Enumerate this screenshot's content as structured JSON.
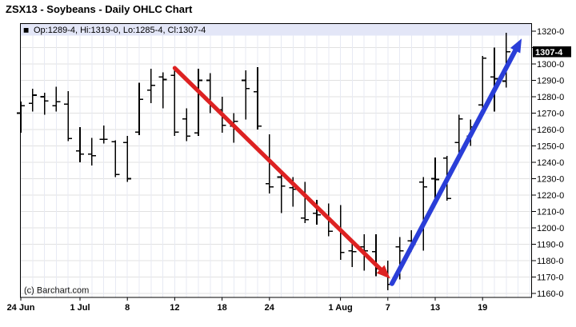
{
  "title": "ZSX13 - Soybeans - Daily OHLC Chart",
  "quote_strip": {
    "marker": "■",
    "text": "Op:1289-4, Hi:1319-0, Lo:1285-4, Cl:1307-4"
  },
  "copyright": "(c) Barchart.com",
  "colors": {
    "bar": "#000000",
    "downtrend_arrow": "#dd2222",
    "uptrend_arrow": "#2a3ed8",
    "quote_strip_bg": "#e3e6f7",
    "grid_h": "#e1e1e1",
    "grid_v": "#e7eaf3",
    "axis": "#000000",
    "last_price_bg": "#000000",
    "last_price_fg": "#ffffff"
  },
  "chart_data": {
    "type": "ohlc",
    "symbol": "ZSX13",
    "commodity": "Soybeans",
    "interval": "Daily",
    "title": "ZSX13 - Soybeans - Daily OHLC Chart",
    "price_format": "eighths: 1307-4 means 1307.5",
    "ylim": [
      1157,
      1325
    ],
    "y_gridline_step": 10,
    "grid": true,
    "legend": false,
    "y_axis_side": "right",
    "y_tick_labels": [
      {
        "label": "1320-0",
        "value": 1320
      },
      {
        "label": "1300-0",
        "value": 1300
      },
      {
        "label": "1290-0",
        "value": 1290
      },
      {
        "label": "1280-0",
        "value": 1280
      },
      {
        "label": "1270-0",
        "value": 1270
      },
      {
        "label": "1260-0",
        "value": 1260
      },
      {
        "label": "1250-0",
        "value": 1250
      },
      {
        "label": "1240-0",
        "value": 1240
      },
      {
        "label": "1230-0",
        "value": 1230
      },
      {
        "label": "1220-0",
        "value": 1220
      },
      {
        "label": "1210-0",
        "value": 1210
      },
      {
        "label": "1200-0",
        "value": 1200
      },
      {
        "label": "1190-0",
        "value": 1190
      },
      {
        "label": "1180-0",
        "value": 1180
      },
      {
        "label": "1170-0",
        "value": 1170
      },
      {
        "label": "1160-0",
        "value": 1160
      }
    ],
    "last_price": {
      "label": "1307-4",
      "value": 1307.5
    },
    "x_ticks": [
      {
        "label": "24 Jun",
        "bar": 0
      },
      {
        "label": "1 Jul",
        "bar": 5
      },
      {
        "label": "8",
        "bar": 9
      },
      {
        "label": "12",
        "bar": 13
      },
      {
        "label": "18",
        "bar": 17
      },
      {
        "label": "24",
        "bar": 21
      },
      {
        "label": "1 Aug",
        "bar": 27
      },
      {
        "label": "7",
        "bar": 31
      },
      {
        "label": "13",
        "bar": 35
      },
      {
        "label": "19",
        "bar": 39
      }
    ],
    "bars": [
      {
        "d": "24 Jun",
        "o": 1270.0,
        "h": 1277.0,
        "l": 1258.0,
        "c": 1274.5
      },
      {
        "d": "25 Jun",
        "o": 1276.0,
        "h": 1285.0,
        "l": 1271.0,
        "c": 1281.0
      },
      {
        "d": "26 Jun",
        "o": 1280.0,
        "h": 1282.5,
        "l": 1269.0,
        "c": 1277.5
      },
      {
        "d": "27 Jun",
        "o": 1274.5,
        "h": 1286.0,
        "l": 1271.0,
        "c": 1277.0
      },
      {
        "d": "28 Jun",
        "o": 1275.5,
        "h": 1283.5,
        "l": 1253.0,
        "c": 1254.5
      },
      {
        "d": "1 Jul",
        "o": 1247.0,
        "h": 1261.5,
        "l": 1240.0,
        "c": 1245.0
      },
      {
        "d": "2 Jul",
        "o": 1245.0,
        "h": 1255.0,
        "l": 1238.0,
        "c": 1244.0
      },
      {
        "d": "3 Jul",
        "o": 1254.0,
        "h": 1262.5,
        "l": 1251.5,
        "c": 1254.0
      },
      {
        "d": "5 Jul",
        "o": 1252.5,
        "h": 1253.5,
        "l": 1231.0,
        "c": 1232.5
      },
      {
        "d": "8 Jul",
        "o": 1252.0,
        "h": 1256.0,
        "l": 1228.0,
        "c": 1230.0
      },
      {
        "d": "9 Jul",
        "o": 1258.5,
        "h": 1288.5,
        "l": 1256.5,
        "c": 1278.5
      },
      {
        "d": "10 Jul",
        "o": 1284.0,
        "h": 1297.0,
        "l": 1276.0,
        "c": 1287.0
      },
      {
        "d": "11 Jul",
        "o": 1292.0,
        "h": 1295.0,
        "l": 1273.0,
        "c": 1290.5
      },
      {
        "d": "12 Jul",
        "o": 1293.0,
        "h": 1298.0,
        "l": 1256.0,
        "c": 1258.5
      },
      {
        "d": "15 Jul",
        "o": 1266.5,
        "h": 1273.0,
        "l": 1253.0,
        "c": 1256.0
      },
      {
        "d": "16 Jul",
        "o": 1258.0,
        "h": 1297.0,
        "l": 1256.0,
        "c": 1290.0
      },
      {
        "d": "17 Jul",
        "o": 1290.0,
        "h": 1294.5,
        "l": 1270.0,
        "c": 1275.0
      },
      {
        "d": "18 Jul",
        "o": 1272.0,
        "h": 1280.0,
        "l": 1258.0,
        "c": 1262.5
      },
      {
        "d": "19 Jul",
        "o": 1262.0,
        "h": 1270.0,
        "l": 1252.0,
        "c": 1265.0
      },
      {
        "d": "22 Jul",
        "o": 1290.0,
        "h": 1296.0,
        "l": 1266.0,
        "c": 1285.0
      },
      {
        "d": "23 Jul",
        "o": 1283.0,
        "h": 1298.0,
        "l": 1260.0,
        "c": 1262.0
      },
      {
        "d": "24 Jul",
        "o": 1227.0,
        "h": 1257.0,
        "l": 1221.0,
        "c": 1225.0
      },
      {
        "d": "25 Jul",
        "o": 1231.0,
        "h": 1235.0,
        "l": 1209.0,
        "c": 1225.5
      },
      {
        "d": "26 Jul",
        "o": 1224.5,
        "h": 1231.0,
        "l": 1213.0,
        "c": 1223.5
      },
      {
        "d": "29 Jul",
        "o": 1206.0,
        "h": 1228.0,
        "l": 1203.0,
        "c": 1205.0
      },
      {
        "d": "30 Jul",
        "o": 1209.0,
        "h": 1217.0,
        "l": 1202.0,
        "c": 1208.0
      },
      {
        "d": "31 Jul",
        "o": 1207.5,
        "h": 1215.0,
        "l": 1195.0,
        "c": 1198.0
      },
      {
        "d": "1 Aug",
        "o": 1200.0,
        "h": 1214.0,
        "l": 1180.5,
        "c": 1185.0
      },
      {
        "d": "2 Aug",
        "o": 1186.0,
        "h": 1193.0,
        "l": 1176.0,
        "c": 1185.5
      },
      {
        "d": "5 Aug",
        "o": 1188.5,
        "h": 1196.0,
        "l": 1174.0,
        "c": 1186.0
      },
      {
        "d": "6 Aug",
        "o": 1185.5,
        "h": 1196.0,
        "l": 1170.5,
        "c": 1175.0
      },
      {
        "d": "7 Aug",
        "o": 1172.0,
        "h": 1180.0,
        "l": 1162.0,
        "c": 1165.5
      },
      {
        "d": "8 Aug",
        "o": 1188.5,
        "h": 1194.5,
        "l": 1168.5,
        "c": 1186.0
      },
      {
        "d": "9 Aug",
        "o": 1192.0,
        "h": 1198.5,
        "l": 1185.5,
        "c": 1190.0
      },
      {
        "d": "12 Aug",
        "o": 1228.0,
        "h": 1231.0,
        "l": 1186.0,
        "c": 1225.0
      },
      {
        "d": "13 Aug",
        "o": 1230.0,
        "h": 1243.0,
        "l": 1217.0,
        "c": 1229.5
      },
      {
        "d": "14 Aug",
        "o": 1242.5,
        "h": 1244.0,
        "l": 1216.5,
        "c": 1218.0
      },
      {
        "d": "15 Aug",
        "o": 1252.0,
        "h": 1269.0,
        "l": 1244.0,
        "c": 1266.5
      },
      {
        "d": "16 Aug",
        "o": 1256.0,
        "h": 1266.0,
        "l": 1250.0,
        "c": 1261.5
      },
      {
        "d": "19 Aug",
        "o": 1275.0,
        "h": 1305.0,
        "l": 1271.0,
        "c": 1303.5
      },
      {
        "d": "20 Aug",
        "o": 1292.0,
        "h": 1310.0,
        "l": 1271.0,
        "c": 1291.0
      },
      {
        "d": "21 Aug",
        "o": 1289.5,
        "h": 1319.0,
        "l": 1285.5,
        "c": 1307.5
      }
    ],
    "annotations": [
      {
        "name": "downtrend-arrow",
        "direction": "down",
        "from": {
          "bar": 13.0,
          "price": 1297.5
        },
        "to": {
          "bar": 31.2,
          "price": 1169.0
        },
        "color": "#dd2222"
      },
      {
        "name": "uptrend-arrow",
        "direction": "up",
        "from": {
          "bar": 31.35,
          "price": 1166.0
        },
        "to": {
          "bar": 42.3,
          "price": 1315.5
        },
        "color": "#2a3ed8"
      }
    ]
  }
}
